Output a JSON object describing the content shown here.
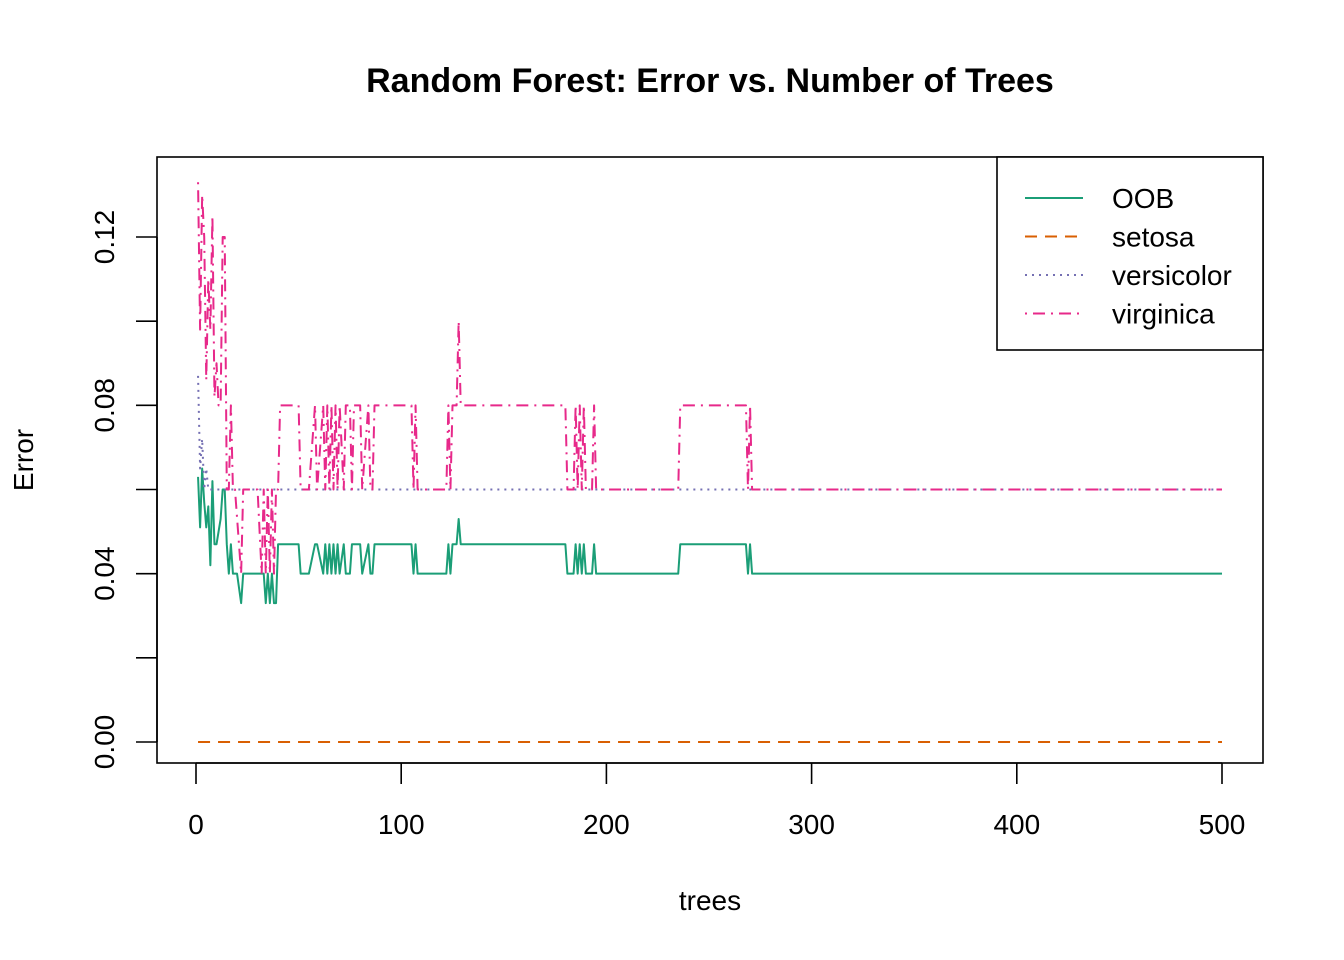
{
  "chart_data": {
    "type": "line",
    "title": "Random Forest: Error vs. Number of Trees",
    "xlabel": "trees",
    "ylabel": "Error",
    "xlim": [
      0,
      500
    ],
    "ylim": [
      0,
      0.13
    ],
    "x_ticks": [
      0,
      100,
      200,
      300,
      400,
      500
    ],
    "y_ticks": [
      0.0,
      0.02,
      0.04,
      0.06,
      0.08,
      0.1,
      0.12
    ],
    "y_tick_labels": [
      "0.00",
      "",
      "0.04",
      "",
      "0.08",
      "",
      "0.12"
    ],
    "legend_position": "top-right",
    "grid": false,
    "series": [
      {
        "name": "OOB",
        "color": "#1B9E77",
        "dash": "solid",
        "x": [
          1,
          2,
          3,
          4,
          5,
          6,
          7,
          8,
          9,
          10,
          11,
          12,
          13,
          14,
          15,
          16,
          17,
          18,
          19,
          20,
          22,
          23,
          24,
          26,
          28,
          30,
          32,
          33,
          34,
          35,
          36,
          37,
          38,
          39,
          40,
          41,
          42,
          45,
          50,
          51,
          55,
          58,
          59,
          62,
          63,
          64,
          65,
          66,
          67,
          68,
          69,
          70,
          72,
          73,
          74,
          75,
          76,
          77,
          80,
          81,
          84,
          85,
          86,
          87,
          88,
          90,
          95,
          100,
          105,
          106,
          107,
          108,
          110,
          115,
          120,
          122,
          123,
          124,
          125,
          126,
          127,
          128,
          129,
          130,
          140,
          150,
          160,
          170,
          180,
          181,
          184,
          185,
          186,
          187,
          188,
          189,
          190,
          192,
          193,
          194,
          195,
          196,
          200,
          220,
          235,
          236,
          240,
          260,
          268,
          269,
          270,
          271,
          272,
          275,
          300,
          400,
          500
        ],
        "y": [
          0.063,
          0.051,
          0.065,
          0.057,
          0.051,
          0.056,
          0.042,
          0.062,
          0.047,
          0.047,
          0.05,
          0.053,
          0.06,
          0.06,
          0.047,
          0.04,
          0.047,
          0.04,
          0.04,
          0.04,
          0.033,
          0.04,
          0.04,
          0.04,
          0.04,
          0.04,
          0.04,
          0.04,
          0.033,
          0.04,
          0.033,
          0.04,
          0.033,
          0.033,
          0.047,
          0.047,
          0.047,
          0.047,
          0.047,
          0.04,
          0.04,
          0.047,
          0.047,
          0.04,
          0.047,
          0.04,
          0.047,
          0.04,
          0.047,
          0.04,
          0.047,
          0.04,
          0.047,
          0.04,
          0.04,
          0.04,
          0.047,
          0.047,
          0.047,
          0.04,
          0.047,
          0.04,
          0.04,
          0.047,
          0.047,
          0.047,
          0.047,
          0.047,
          0.047,
          0.04,
          0.047,
          0.04,
          0.04,
          0.04,
          0.04,
          0.04,
          0.047,
          0.04,
          0.047,
          0.047,
          0.047,
          0.053,
          0.047,
          0.047,
          0.047,
          0.047,
          0.047,
          0.047,
          0.047,
          0.04,
          0.04,
          0.047,
          0.04,
          0.047,
          0.04,
          0.047,
          0.04,
          0.04,
          0.04,
          0.047,
          0.04,
          0.04,
          0.04,
          0.04,
          0.04,
          0.047,
          0.047,
          0.047,
          0.047,
          0.04,
          0.047,
          0.04,
          0.04,
          0.04,
          0.04,
          0.04,
          0.04
        ]
      },
      {
        "name": "setosa",
        "color": "#D95F02",
        "dash": "dashed",
        "x": [
          1,
          500
        ],
        "y": [
          0,
          0
        ]
      },
      {
        "name": "versicolor",
        "color": "#7570B3",
        "dash": "dotted",
        "x": [
          1,
          2,
          3,
          4,
          5,
          6,
          7,
          8,
          9,
          10,
          500
        ],
        "y": [
          0.087,
          0.065,
          0.072,
          0.06,
          0.065,
          0.06,
          0.06,
          0.06,
          0.06,
          0.06,
          0.06
        ]
      },
      {
        "name": "virginica",
        "color": "#E7298A",
        "dash": "dashdot",
        "x": [
          1,
          2,
          3,
          4,
          5,
          6,
          7,
          8,
          9,
          10,
          11,
          12,
          13,
          14,
          15,
          16,
          17,
          18,
          19,
          22,
          23,
          24,
          25,
          30,
          32,
          33,
          34,
          35,
          36,
          37,
          38,
          39,
          40,
          41,
          42,
          45,
          50,
          51,
          55,
          58,
          59,
          62,
          63,
          64,
          65,
          66,
          67,
          68,
          69,
          70,
          72,
          73,
          74,
          75,
          76,
          77,
          80,
          81,
          84,
          85,
          86,
          87,
          88,
          90,
          95,
          100,
          105,
          106,
          107,
          108,
          110,
          115,
          120,
          122,
          123,
          124,
          125,
          126,
          127,
          128,
          129,
          130,
          140,
          150,
          160,
          170,
          180,
          181,
          184,
          185,
          186,
          187,
          188,
          189,
          190,
          192,
          193,
          194,
          195,
          196,
          200,
          220,
          235,
          236,
          240,
          260,
          268,
          269,
          270,
          271,
          272,
          275,
          300,
          400,
          500
        ],
        "y": [
          0.133,
          0.098,
          0.13,
          0.12,
          0.086,
          0.11,
          0.098,
          0.125,
          0.082,
          0.09,
          0.08,
          0.08,
          0.12,
          0.12,
          0.06,
          0.06,
          0.08,
          0.06,
          0.06,
          0.04,
          0.06,
          0.06,
          0.06,
          0.06,
          0.04,
          0.06,
          0.04,
          0.06,
          0.04,
          0.06,
          0.04,
          0.06,
          0.06,
          0.08,
          0.08,
          0.08,
          0.08,
          0.06,
          0.06,
          0.08,
          0.06,
          0.08,
          0.06,
          0.08,
          0.06,
          0.08,
          0.06,
          0.08,
          0.06,
          0.08,
          0.06,
          0.08,
          0.08,
          0.08,
          0.06,
          0.08,
          0.08,
          0.06,
          0.08,
          0.06,
          0.06,
          0.08,
          0.08,
          0.08,
          0.08,
          0.08,
          0.08,
          0.06,
          0.08,
          0.06,
          0.06,
          0.06,
          0.06,
          0.06,
          0.08,
          0.06,
          0.08,
          0.08,
          0.08,
          0.1,
          0.08,
          0.08,
          0.08,
          0.08,
          0.08,
          0.08,
          0.08,
          0.06,
          0.06,
          0.08,
          0.06,
          0.08,
          0.06,
          0.08,
          0.06,
          0.06,
          0.06,
          0.08,
          0.06,
          0.06,
          0.06,
          0.06,
          0.06,
          0.08,
          0.08,
          0.08,
          0.08,
          0.06,
          0.08,
          0.06,
          0.06,
          0.06,
          0.06,
          0.06,
          0.06
        ]
      }
    ]
  }
}
